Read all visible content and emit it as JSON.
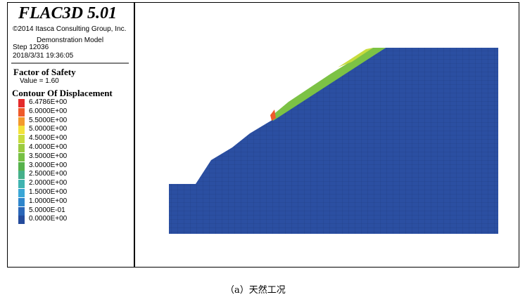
{
  "header": {
    "title": "FLAC3D 5.01",
    "copyright": "©2014 Itasca Consulting Group, Inc.",
    "model": "Demonstration Model",
    "step": "Step 12036",
    "date": "2018/3/31 19:36:05"
  },
  "factor_of_safety": {
    "title": "Factor of Safety",
    "value": "Value = 1.60"
  },
  "contour": {
    "title": "Contour Of Displacement",
    "legend": [
      {
        "label": "6.4786E+00",
        "color": "#e42a2a"
      },
      {
        "label": "6.0000E+00",
        "color": "#ef5a2a"
      },
      {
        "label": "5.5000E+00",
        "color": "#f39a2c"
      },
      {
        "label": "5.0000E+00",
        "color": "#f3e23a"
      },
      {
        "label": "4.5000E+00",
        "color": "#c8dc3e"
      },
      {
        "label": "4.0000E+00",
        "color": "#9bcb40"
      },
      {
        "label": "3.5000E+00",
        "color": "#76c044"
      },
      {
        "label": "3.0000E+00",
        "color": "#56b24c"
      },
      {
        "label": "2.5000E+00",
        "color": "#45b08a"
      },
      {
        "label": "2.0000E+00",
        "color": "#3fb3b0"
      },
      {
        "label": "1.5000E+00",
        "color": "#3aa6d6"
      },
      {
        "label": "1.0000E+00",
        "color": "#2f86cc"
      },
      {
        "label": "5.0000E-01",
        "color": "#2a66b8"
      },
      {
        "label": "0.0000E+00",
        "color": "#244b9c"
      }
    ]
  },
  "caption": "（a）天然工况"
}
